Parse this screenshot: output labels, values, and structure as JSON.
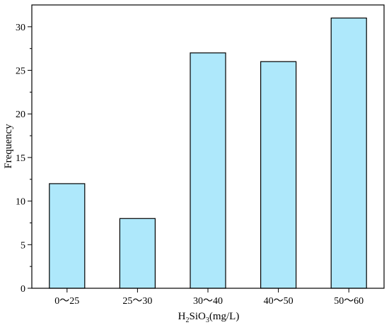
{
  "chart_data": {
    "type": "bar",
    "categories": [
      "0～25",
      "25～30",
      "30～40",
      "40～50",
      "50～60"
    ],
    "values": [
      12,
      8,
      27,
      26,
      31
    ],
    "xlabel": {
      "base": "H",
      "sub1": "2",
      "mid": "SiO",
      "sub2": "3",
      "tail": "(mg/L)"
    },
    "ylabel": "Frequency",
    "ylim": [
      0,
      32.5
    ],
    "yticks": [
      0,
      5,
      10,
      15,
      20,
      25,
      30
    ],
    "grid": false,
    "bar_color": "#aee8fb",
    "bar_edge_color": "#000000"
  }
}
